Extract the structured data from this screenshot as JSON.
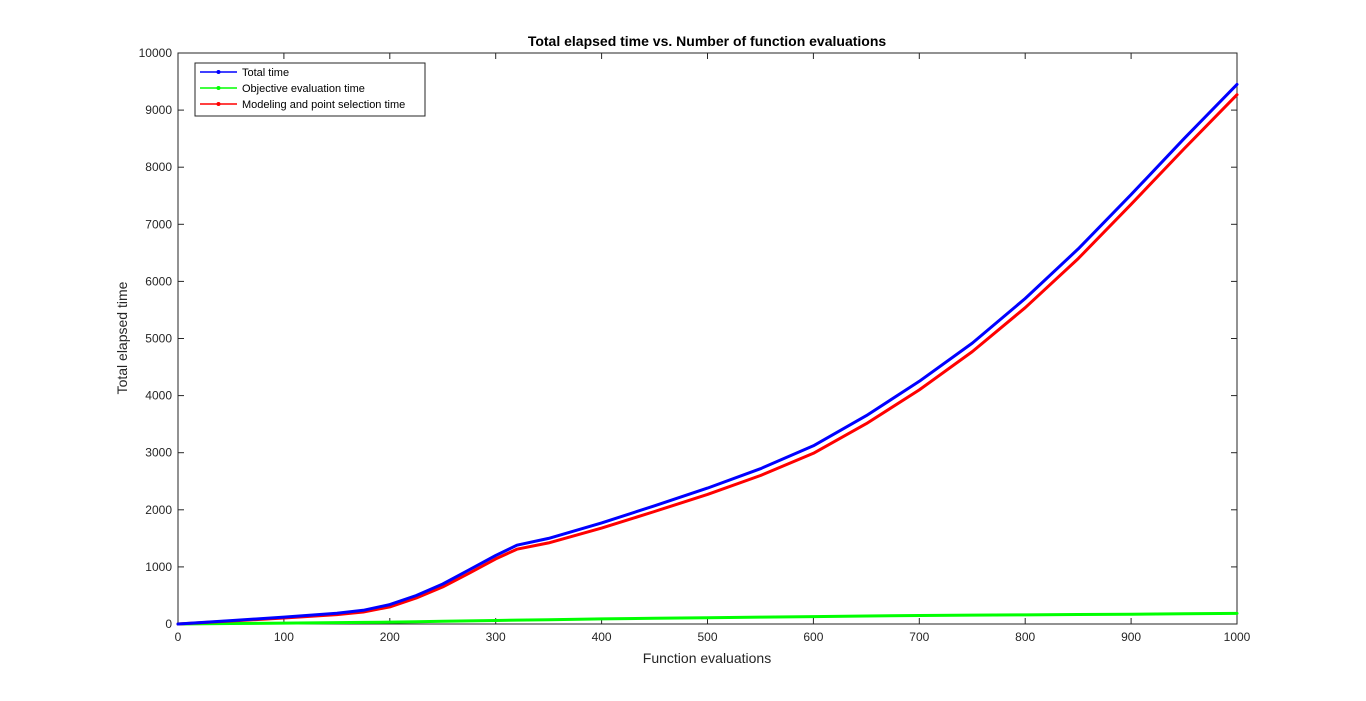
{
  "chart_data": {
    "type": "line",
    "title": "Total elapsed time vs. Number of function evaluations",
    "xlabel": "Function evaluations",
    "ylabel": "Total elapsed time",
    "xlim": [
      0,
      1000
    ],
    "ylim": [
      0,
      10000
    ],
    "x_ticks": [
      0,
      100,
      200,
      300,
      400,
      500,
      600,
      700,
      800,
      900,
      1000
    ],
    "y_ticks": [
      0,
      1000,
      2000,
      3000,
      4000,
      5000,
      6000,
      7000,
      8000,
      9000,
      10000
    ],
    "grid": false,
    "legend_position": "top-left",
    "x": [
      0,
      50,
      100,
      150,
      175,
      200,
      225,
      250,
      275,
      300,
      320,
      350,
      400,
      450,
      500,
      550,
      600,
      650,
      700,
      750,
      800,
      850,
      900,
      950,
      1000
    ],
    "series": [
      {
        "name": "Total time",
        "color": "#0000ff",
        "values": [
          0,
          60,
          120,
          190,
          240,
          340,
          500,
          700,
          950,
          1200,
          1380,
          1500,
          1770,
          2070,
          2380,
          2720,
          3120,
          3650,
          4250,
          4920,
          5700,
          6570,
          7520,
          8500,
          9450
        ]
      },
      {
        "name": "Objective evaluation time",
        "color": "#00ff00",
        "values": [
          0,
          8,
          15,
          24,
          28,
          33,
          40,
          48,
          55,
          62,
          68,
          75,
          90,
          100,
          110,
          120,
          130,
          140,
          148,
          155,
          160,
          166,
          172,
          178,
          185
        ]
      },
      {
        "name": "Modeling and point selection time",
        "color": "#ff0000",
        "values": [
          0,
          52,
          105,
          165,
          210,
          300,
          455,
          650,
          890,
          1140,
          1310,
          1420,
          1680,
          1970,
          2270,
          2600,
          2990,
          3510,
          4100,
          4770,
          5540,
          6400,
          7350,
          8320,
          9270
        ]
      }
    ]
  }
}
